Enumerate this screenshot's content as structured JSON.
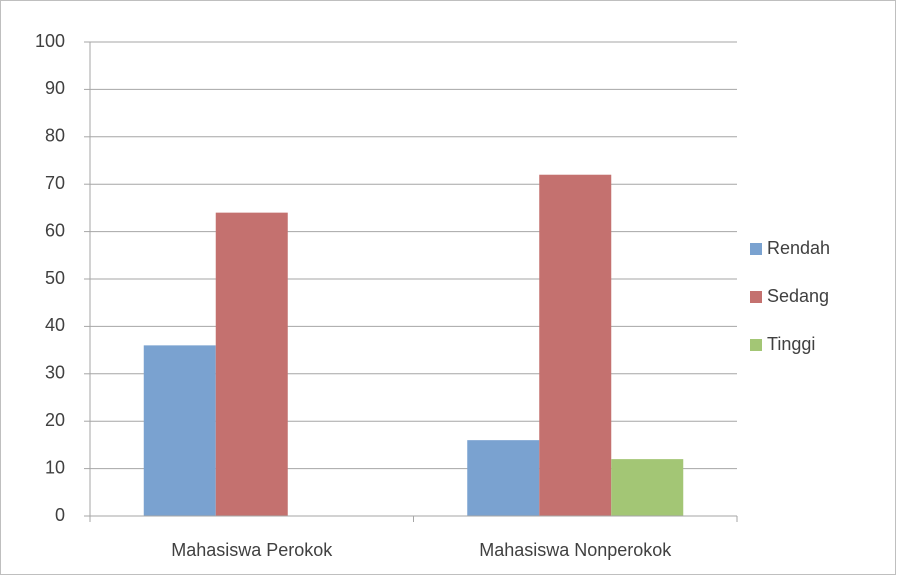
{
  "chart_data": {
    "type": "bar",
    "categories": [
      "Mahasiswa Perokok",
      "Mahasiswa Nonperokok"
    ],
    "series": [
      {
        "name": "Rendah",
        "color": "#7aa2d0",
        "values": [
          36,
          16
        ]
      },
      {
        "name": "Sedang",
        "color": "#c4716f",
        "values": [
          64,
          72
        ]
      },
      {
        "name": "Tinggi",
        "color": "#a3c675",
        "values": [
          0,
          12
        ]
      }
    ],
    "ylim": [
      0,
      100
    ],
    "yticks": [
      0,
      10,
      20,
      30,
      40,
      50,
      60,
      70,
      80,
      90,
      100
    ],
    "grid": true,
    "legend": "right"
  }
}
